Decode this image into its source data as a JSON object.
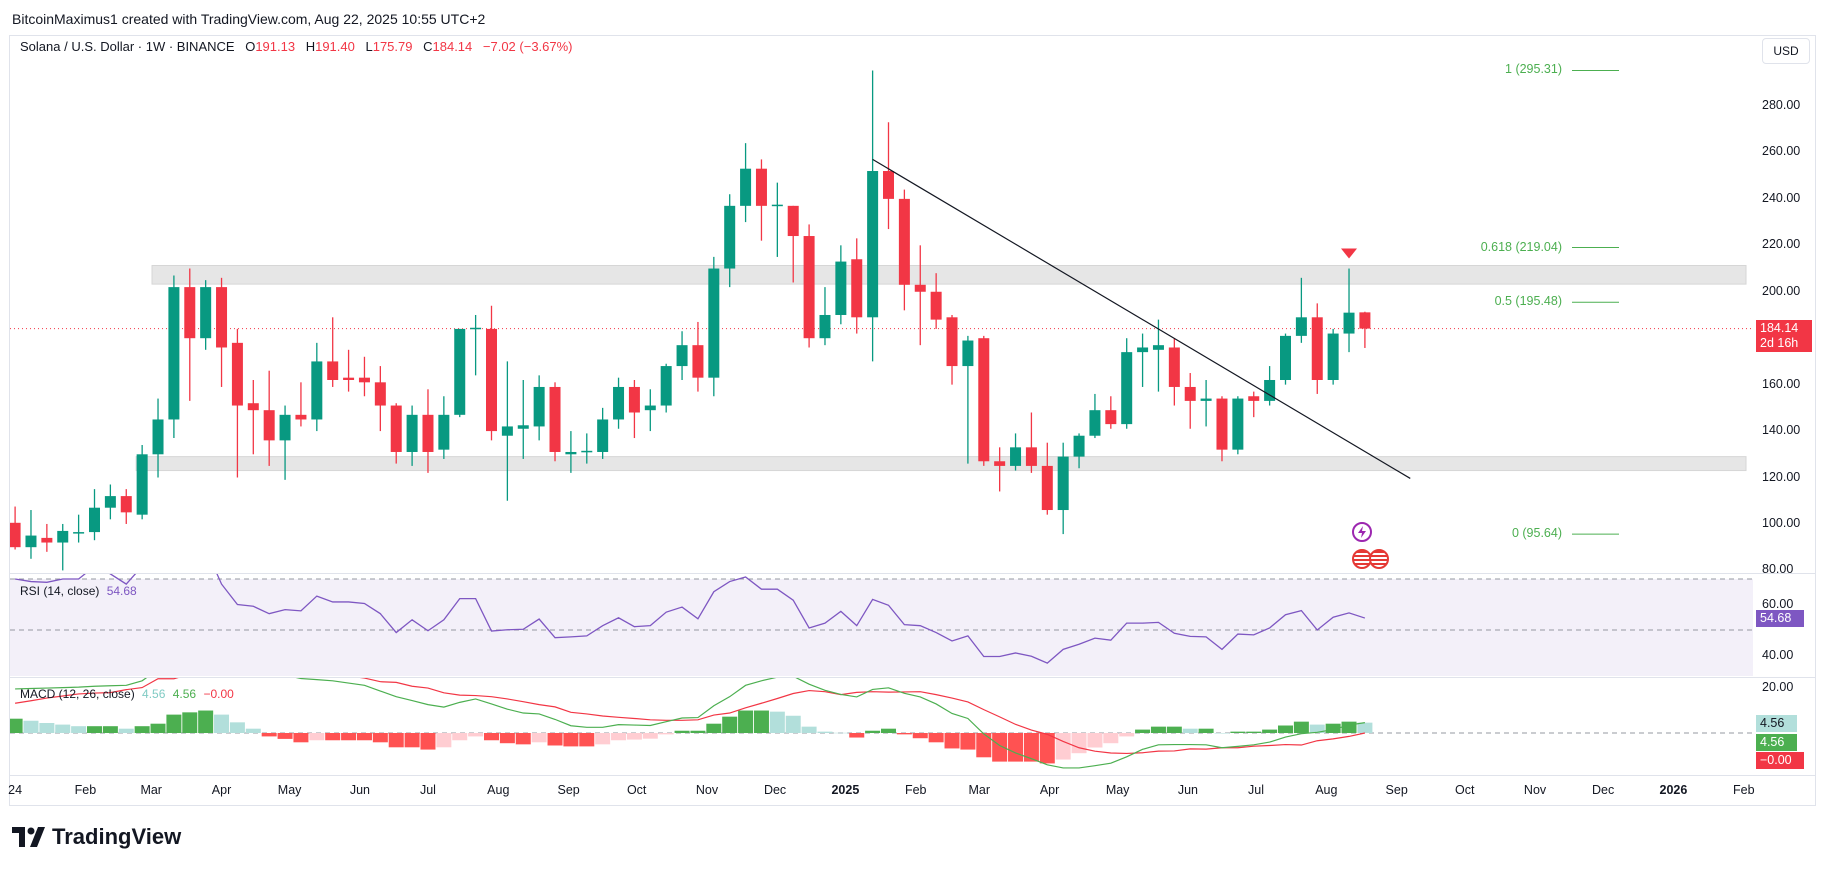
{
  "attribution": "BitcoinMaximus1 created with TradingView.com, Aug 22, 2025 10:55 UTC+2",
  "legend": {
    "symbol": "Solana / U.S. Dollar · 1W · BINANCE",
    "open_label": "O",
    "open": "191.13",
    "high_label": "H",
    "high": "191.40",
    "low_label": "L",
    "low": "175.79",
    "close_label": "C",
    "close": "184.14",
    "change": "−7.02 (−3.67%)"
  },
  "currency_button": "USD",
  "current_price": {
    "value": 184.14,
    "label": "184.14",
    "countdown": "2d 16h"
  },
  "rsi_legend": {
    "title": "RSI (14, close)",
    "value": "54.68"
  },
  "macd_legend": {
    "title": "MACD (12, 26, close)",
    "histogram": "4.56",
    "macd": "4.56",
    "signal": "−0.00"
  },
  "macd_tags": {
    "histogram": "4.56",
    "macd": "4.56",
    "signal": "−0.00"
  },
  "footer": {
    "brand": "TradingView"
  },
  "colors": {
    "up": "#089981",
    "down": "#f23645",
    "rsi": "#7e57c2",
    "macd": "#4caf50",
    "signal": "#f23645",
    "hist_up_rising": "#4caf50",
    "hist_up_falling": "#b2dfdb",
    "hist_down_falling": "#ff5252",
    "hist_down_rising": "#ffcdd2",
    "fib": "#4caf50",
    "zone": "#e6e6e6",
    "trendline": "#131722"
  },
  "chart_data": {
    "type": "candlestick",
    "interval": "1W",
    "price_axis": {
      "ticks": [
        "280.00",
        "260.00",
        "240.00",
        "220.00",
        "200.00",
        "160.00",
        "140.00",
        "120.00",
        "100.00",
        "80.00"
      ],
      "range": [
        75,
        308
      ]
    },
    "rsi_axis": {
      "ticks": [
        "60.00",
        "40.00"
      ],
      "levels": [
        70,
        50,
        30
      ]
    },
    "macd_axis": {
      "ticks": [
        "20.00"
      ]
    },
    "x_ticks": [
      {
        "label": "24",
        "date": "2024-01-01",
        "year": false
      },
      {
        "label": "Feb",
        "date": "2024-02-01"
      },
      {
        "label": "Mar",
        "date": "2024-03-01"
      },
      {
        "label": "Apr",
        "date": "2024-04-01"
      },
      {
        "label": "May",
        "date": "2024-05-01"
      },
      {
        "label": "Jun",
        "date": "2024-06-01"
      },
      {
        "label": "Jul",
        "date": "2024-07-01"
      },
      {
        "label": "Aug",
        "date": "2024-08-01"
      },
      {
        "label": "Sep",
        "date": "2024-09-01"
      },
      {
        "label": "Oct",
        "date": "2024-10-01"
      },
      {
        "label": "Nov",
        "date": "2024-11-01"
      },
      {
        "label": "Dec",
        "date": "2024-12-01"
      },
      {
        "label": "2025",
        "date": "2025-01-01",
        "year": true
      },
      {
        "label": "Feb",
        "date": "2025-02-01"
      },
      {
        "label": "Mar",
        "date": "2025-03-01"
      },
      {
        "label": "Apr",
        "date": "2025-04-01"
      },
      {
        "label": "May",
        "date": "2025-05-01"
      },
      {
        "label": "Jun",
        "date": "2025-06-01"
      },
      {
        "label": "Jul",
        "date": "2025-07-01"
      },
      {
        "label": "Aug",
        "date": "2025-08-01"
      },
      {
        "label": "Sep",
        "date": "2025-09-01"
      },
      {
        "label": "Oct",
        "date": "2025-10-01"
      },
      {
        "label": "Nov",
        "date": "2025-11-01"
      },
      {
        "label": "Dec",
        "date": "2025-12-01"
      },
      {
        "label": "2026",
        "date": "2026-01-01",
        "year": true
      },
      {
        "label": "Feb",
        "date": "2026-02-01"
      }
    ],
    "candles_format": [
      "date",
      "open",
      "high",
      "low",
      "close"
    ],
    "candles": [
      [
        "2024-01-01",
        100.5,
        107.5,
        89,
        90
      ],
      [
        "2024-01-08",
        90,
        106,
        85,
        95
      ],
      [
        "2024-01-15",
        94,
        100,
        88,
        92
      ],
      [
        "2024-01-22",
        92,
        100,
        80,
        97
      ],
      [
        "2024-01-29",
        96,
        104,
        92,
        96.5
      ],
      [
        "2024-02-05",
        96.5,
        115,
        93,
        107
      ],
      [
        "2024-02-12",
        107,
        117,
        102,
        112
      ],
      [
        "2024-02-19",
        112,
        115,
        100,
        105
      ],
      [
        "2024-02-26",
        104,
        134,
        102,
        130
      ],
      [
        "2024-03-04",
        130,
        154,
        120,
        145
      ],
      [
        "2024-03-11",
        145,
        207,
        137,
        202
      ],
      [
        "2024-03-18",
        202,
        210,
        153,
        180
      ],
      [
        "2024-03-25",
        180,
        205,
        175,
        202
      ],
      [
        "2024-04-01",
        202,
        206,
        159,
        176
      ],
      [
        "2024-04-08",
        178,
        184,
        120,
        151
      ],
      [
        "2024-04-15",
        152,
        162,
        130,
        149
      ],
      [
        "2024-04-22",
        149,
        166,
        125,
        136
      ],
      [
        "2024-04-29",
        136,
        151,
        119,
        147
      ],
      [
        "2024-05-06",
        147,
        161,
        142,
        145
      ],
      [
        "2024-05-13",
        145,
        178,
        140,
        170
      ],
      [
        "2024-05-20",
        170,
        189,
        159,
        162
      ],
      [
        "2024-05-27",
        163,
        175,
        157,
        162
      ],
      [
        "2024-06-03",
        163,
        172,
        155,
        161
      ],
      [
        "2024-06-10",
        161,
        168,
        140,
        151
      ],
      [
        "2024-06-17",
        151,
        152,
        126,
        131
      ],
      [
        "2024-06-24",
        131,
        151,
        125,
        147
      ],
      [
        "2024-07-01",
        147,
        158,
        122,
        131
      ],
      [
        "2024-07-08",
        132,
        155,
        128,
        147
      ],
      [
        "2024-07-15",
        147,
        184,
        146,
        184
      ],
      [
        "2024-07-22",
        184,
        190,
        164,
        184.5
      ],
      [
        "2024-07-29",
        184,
        194,
        136,
        140
      ],
      [
        "2024-08-05",
        138,
        170,
        110,
        142
      ],
      [
        "2024-08-12",
        141,
        162,
        128,
        142.5
      ],
      [
        "2024-08-19",
        142,
        164,
        136,
        159
      ],
      [
        "2024-08-26",
        159,
        161,
        127,
        131
      ],
      [
        "2024-09-02",
        130,
        140,
        122,
        131
      ],
      [
        "2024-09-09",
        131,
        139,
        126,
        131.5
      ],
      [
        "2024-09-16",
        131,
        150,
        128,
        145
      ],
      [
        "2024-09-23",
        145,
        163,
        141,
        159
      ],
      [
        "2024-09-30",
        159,
        162,
        137,
        148
      ],
      [
        "2024-10-07",
        149,
        158,
        140,
        151
      ],
      [
        "2024-10-14",
        151,
        169,
        148,
        168
      ],
      [
        "2024-10-21",
        168,
        183,
        162,
        177
      ],
      [
        "2024-10-28",
        177,
        187,
        157,
        163
      ],
      [
        "2024-11-04",
        163,
        215,
        155,
        210
      ],
      [
        "2024-11-11",
        210,
        242,
        202,
        237
      ],
      [
        "2024-11-18",
        237,
        264,
        230,
        253
      ],
      [
        "2024-11-25",
        253,
        257,
        222,
        237
      ],
      [
        "2024-12-02",
        237,
        247,
        215,
        237.5
      ],
      [
        "2024-12-09",
        237,
        237,
        204,
        224
      ],
      [
        "2024-12-16",
        224,
        229,
        176,
        180
      ],
      [
        "2024-12-23",
        180,
        202,
        177,
        190
      ],
      [
        "2024-12-30",
        190,
        220,
        186,
        213
      ],
      [
        "2025-01-06",
        214,
        223,
        182,
        189
      ],
      [
        "2025-01-13",
        189,
        295.31,
        170,
        252
      ],
      [
        "2025-01-20",
        252,
        273,
        227,
        240
      ],
      [
        "2025-01-27",
        240,
        244,
        192,
        203
      ],
      [
        "2025-02-03",
        203,
        220,
        177,
        200
      ],
      [
        "2025-02-10",
        200,
        208,
        184,
        188
      ],
      [
        "2025-02-17",
        189,
        190,
        160,
        168
      ],
      [
        "2025-02-24",
        168,
        181,
        126,
        179
      ],
      [
        "2025-03-03",
        180,
        181,
        125,
        127
      ],
      [
        "2025-03-10",
        127,
        133,
        114,
        125
      ],
      [
        "2025-03-17",
        125,
        139,
        123,
        133
      ],
      [
        "2025-03-24",
        133,
        148,
        122,
        125
      ],
      [
        "2025-03-31",
        125,
        135,
        104,
        106
      ],
      [
        "2025-04-07",
        106,
        135,
        95.64,
        129
      ],
      [
        "2025-04-14",
        129,
        139,
        124,
        138
      ],
      [
        "2025-04-21",
        138,
        156,
        137,
        149
      ],
      [
        "2025-04-28",
        149,
        155,
        141,
        143
      ],
      [
        "2025-05-05",
        143,
        180,
        141,
        174
      ],
      [
        "2025-05-12",
        174,
        182,
        159,
        176
      ],
      [
        "2025-05-19",
        175,
        188,
        157,
        177
      ],
      [
        "2025-05-26",
        176,
        180,
        151,
        159
      ],
      [
        "2025-06-02",
        159,
        165,
        141,
        153
      ],
      [
        "2025-06-09",
        153,
        162,
        142,
        154
      ],
      [
        "2025-06-16",
        154,
        155,
        127,
        132
      ],
      [
        "2025-06-23",
        132,
        155,
        130,
        154
      ],
      [
        "2025-06-30",
        155,
        157,
        146,
        153
      ],
      [
        "2025-07-07",
        153,
        168,
        151,
        162
      ],
      [
        "2025-07-14",
        162,
        182,
        160,
        181
      ],
      [
        "2025-07-21",
        181,
        206,
        178,
        189
      ],
      [
        "2025-07-28",
        189,
        195,
        156,
        162
      ],
      [
        "2025-08-04",
        162,
        184,
        160,
        182
      ],
      [
        "2025-08-11",
        182,
        210,
        174,
        191
      ],
      [
        "2025-08-18",
        191.13,
        191.4,
        175.79,
        184.14
      ]
    ],
    "rsi": [
      70,
      69,
      68.7,
      70,
      70,
      75,
      72,
      68,
      75,
      79,
      84,
      80,
      82,
      68,
      60,
      59.3,
      56.4,
      58,
      57.5,
      63.3,
      61,
      61,
      60.4,
      56.4,
      49,
      54,
      49.7,
      54,
      62.3,
      62.3,
      49.6,
      50.1,
      50.3,
      54.3,
      47,
      47.3,
      47.7,
      51.7,
      54.8,
      51.3,
      51.7,
      57,
      59,
      54.4,
      65,
      69,
      70.8,
      66,
      66,
      61.7,
      50.8,
      52.7,
      57.3,
      51.7,
      62,
      59.7,
      52.1,
      51.7,
      49,
      45.7,
      47.7,
      39.6,
      39.6,
      41,
      39.7,
      37,
      42.4,
      44.4,
      46.8,
      46,
      52.7,
      52.7,
      53,
      48.7,
      47.5,
      47.3,
      42.4,
      48.4,
      48.1,
      50.8,
      56,
      57.6,
      50,
      55,
      56.7,
      54.68
    ],
    "macd": [
      19.4,
      19.6,
      19.8,
      20,
      20.2,
      20.6,
      20.8,
      21,
      23,
      28,
      32,
      35,
      37,
      36,
      34,
      31,
      28.5,
      25.5,
      24,
      23.5,
      23,
      22,
      21,
      18.5,
      16,
      14.3,
      12.5,
      11.4,
      13.5,
      15,
      12.8,
      10.5,
      8.8,
      8.4,
      6,
      3.2,
      2.5,
      2.5,
      3.7,
      3.5,
      3.3,
      5,
      6.6,
      6.8,
      12,
      16,
      21,
      23,
      24.6,
      25,
      21.5,
      18.8,
      17,
      15.9,
      19.2,
      19.9,
      17.5,
      15.9,
      12.8,
      8.6,
      6.4,
      -0.4,
      -5.5,
      -8.8,
      -11.3,
      -14,
      -15.4,
      -15.4,
      -14.4,
      -13.3,
      -10.5,
      -7.2,
      -5.2,
      -5.1,
      -5.1,
      -5.2,
      -6.5,
      -5.9,
      -5.2,
      -4,
      -1.8,
      -0.3,
      0.3,
      1.5,
      3.5,
      4.56
    ],
    "signal": [
      13.1,
      14.2,
      15.4,
      16.3,
      17.2,
      17.6,
      17.8,
      19.1,
      20.0,
      23.9,
      23.9,
      25.9,
      27.1,
      27.9,
      29.3,
      29.1,
      30.0,
      28.1,
      28.1,
      26.7,
      26.2,
      25.2,
      24.2,
      22.6,
      22.3,
      20.6,
      19.8,
      17.7,
      16.7,
      16.5,
      16.0,
      15.0,
      13.8,
      12.5,
      11.5,
      9.1,
      8.4,
      7.5,
      6.9,
      6.4,
      5.8,
      5.6,
      5.6,
      5.8,
      7.9,
      8.8,
      11.1,
      13.1,
      15.2,
      17.4,
      18.7,
      18.2,
      16.9,
      17.9,
      18.2,
      18.0,
      18.1,
      18.2,
      16.9,
      15.4,
      13.7,
      10.3,
      7.1,
      3.8,
      1.3,
      -0.6,
      -3.7,
      -6.5,
      -8.0,
      -8.8,
      -9.0,
      -8.7,
      -8.0,
      -7.9,
      -7.0,
      -7.1,
      -6.5,
      -6.5,
      -5.8,
      -5.5,
      -5.1,
      -5.3,
      -3.4,
      -2.6,
      -1.5,
      0.0
    ],
    "histogram": [
      6.3,
      5.4,
      4.4,
      3.7,
      3.0,
      3.0,
      3.0,
      1.9,
      3.0,
      4.1,
      8.1,
      9.1,
      9.9,
      8.1,
      4.7,
      1.9,
      -1.5,
      -2.6,
      -4.1,
      -3.2,
      -3.2,
      -3.2,
      -3.2,
      -4.1,
      -6.3,
      -6.3,
      -7.3,
      -6.3,
      -3.2,
      -1.5,
      -3.2,
      -4.5,
      -5.0,
      -4.1,
      -5.5,
      -5.9,
      -5.9,
      -5.0,
      -3.2,
      -2.9,
      -2.5,
      -0.6,
      1.0,
      1.0,
      4.1,
      7.2,
      9.9,
      9.9,
      9.4,
      7.6,
      2.8,
      0.6,
      0.1,
      -2.0,
      1.0,
      1.9,
      -0.6,
      -2.3,
      -4.1,
      -6.8,
      -7.3,
      -10.7,
      -12.6,
      -12.6,
      -12.6,
      -13.4,
      -11.7,
      -8.9,
      -6.4,
      -4.5,
      -1.5,
      1.5,
      2.8,
      2.8,
      1.9,
      1.9,
      0.0,
      0.6,
      0.6,
      1.5,
      3.3,
      5.0,
      3.7,
      4.1,
      5.0,
      4.56
    ],
    "zones": [
      {
        "top": 211.3,
        "bottom": 203.3,
        "from": "2024-03-04",
        "to": "2026-02-02"
      },
      {
        "top": 129,
        "bottom": 123,
        "from": "2024-02-26",
        "to": "2026-02-02"
      }
    ],
    "fib_levels": [
      {
        "label": "1 (295.31)",
        "price": 295.31
      },
      {
        "label": "0.618 (219.04)",
        "price": 219.04
      },
      {
        "label": "0.5 (195.48)",
        "price": 195.48
      },
      {
        "label": "0 (95.64)",
        "price": 95.64
      }
    ],
    "trendline": {
      "start": {
        "date": "2025-01-13",
        "price": 257
      },
      "end": {
        "date": "2025-09-07",
        "price": 119.6
      }
    },
    "markers": [
      {
        "date": "2025-08-11",
        "type": "arrow-down",
        "color": "#f23645"
      }
    ]
  }
}
